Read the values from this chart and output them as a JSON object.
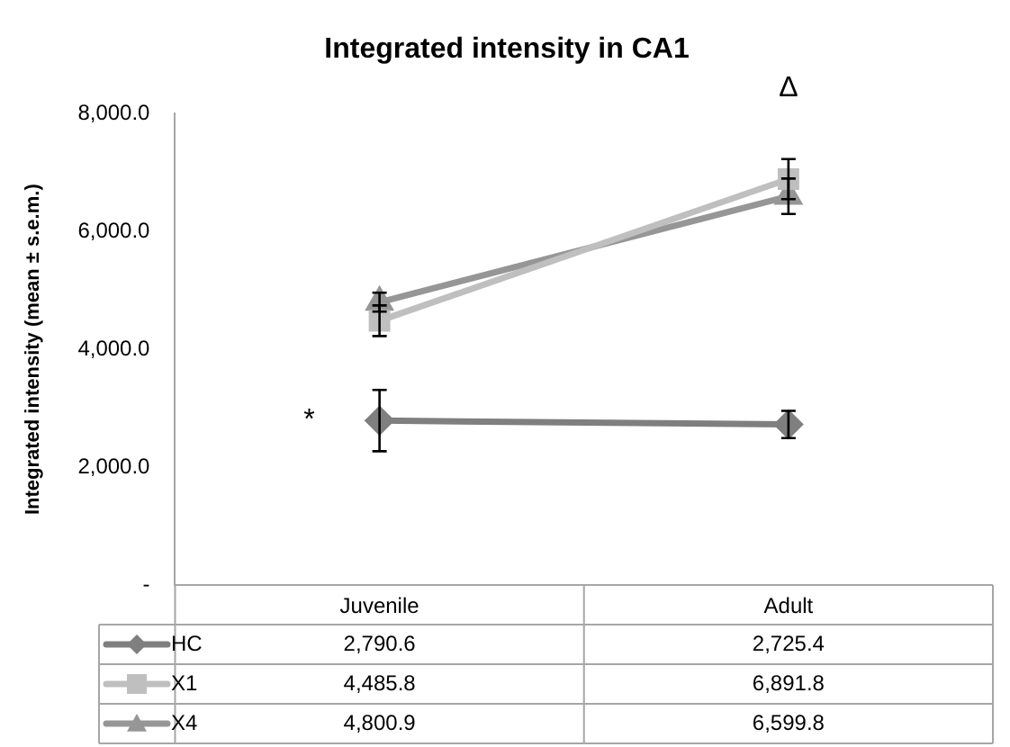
{
  "chart_data": {
    "type": "line",
    "title": "Integrated intensity in CA1",
    "ylabel": "Integrated intensity (mean ± s.e.m.)",
    "categories": [
      "Juvenile",
      "Adult"
    ],
    "series": [
      {
        "name": "HC",
        "color": "#7f7f7f",
        "marker": "diamond",
        "values": [
          2790.6,
          2725.4
        ],
        "value_labels": [
          "2,790.6",
          "2,725.4"
        ],
        "errors": [
          520,
          230
        ]
      },
      {
        "name": "X1",
        "color": "#bfbfbf",
        "marker": "square",
        "values": [
          4485.8,
          6891.8
        ],
        "value_labels": [
          "4,485.8",
          "6,891.8"
        ],
        "errors": [
          260,
          340
        ]
      },
      {
        "name": "X4",
        "color": "#969696",
        "marker": "triangle",
        "values": [
          4800.9,
          6599.8
        ],
        "value_labels": [
          "4,800.9",
          "6,599.8"
        ],
        "errors": [
          160,
          300
        ]
      }
    ],
    "ylim": [
      0,
      8000
    ],
    "yticks": [
      {
        "value": 0,
        "label": "-"
      },
      {
        "value": 2000,
        "label": "2,000.0"
      },
      {
        "value": 4000,
        "label": "4,000.0"
      },
      {
        "value": 6000,
        "label": "6,000.0"
      },
      {
        "value": 8000,
        "label": "8,000.0"
      }
    ],
    "grid": false,
    "legend": "bottom",
    "annotations": [
      {
        "text": "*",
        "x": "Juvenile",
        "y": 2790.6
      },
      "Δ"
    ]
  }
}
